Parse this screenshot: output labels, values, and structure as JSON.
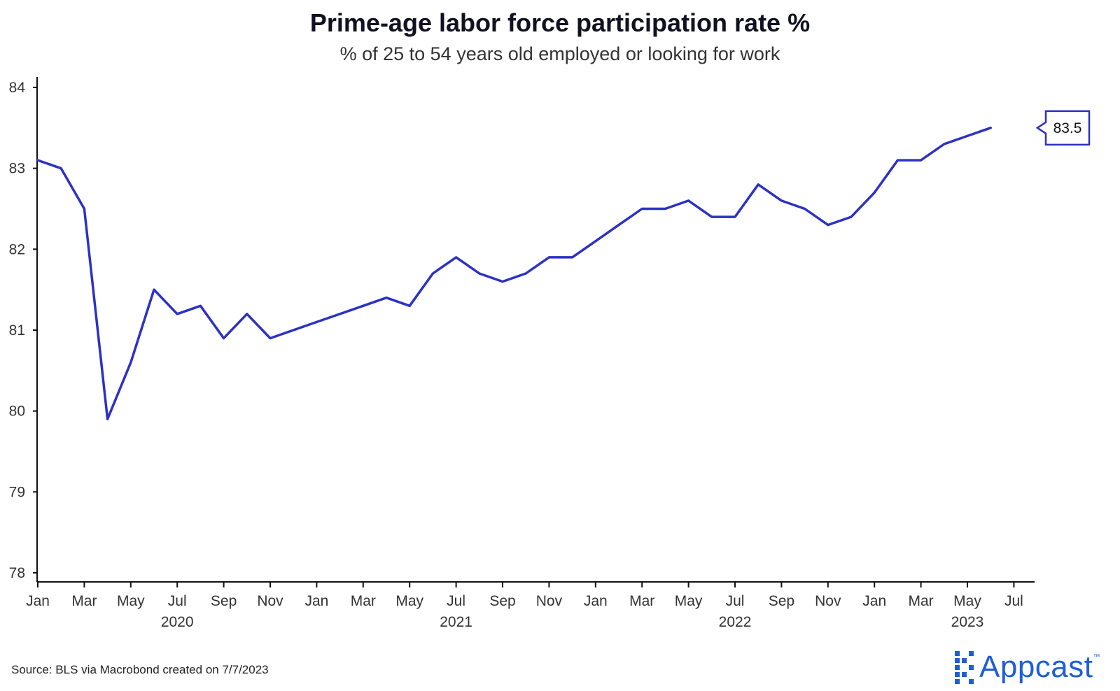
{
  "chart_data": {
    "type": "line",
    "title": "Prime-age labor force participation rate %",
    "subtitle": "% of 25 to 54 years old employed or looking for work",
    "x": [
      "2020-01",
      "2020-02",
      "2020-03",
      "2020-04",
      "2020-05",
      "2020-06",
      "2020-07",
      "2020-08",
      "2020-09",
      "2020-10",
      "2020-11",
      "2020-12",
      "2021-01",
      "2021-02",
      "2021-03",
      "2021-04",
      "2021-05",
      "2021-06",
      "2021-07",
      "2021-08",
      "2021-09",
      "2021-10",
      "2021-11",
      "2021-12",
      "2022-01",
      "2022-02",
      "2022-03",
      "2022-04",
      "2022-05",
      "2022-06",
      "2022-07",
      "2022-08",
      "2022-09",
      "2022-10",
      "2022-11",
      "2022-12",
      "2023-01",
      "2023-02",
      "2023-03",
      "2023-04",
      "2023-05",
      "2023-06"
    ],
    "series": [
      {
        "values": [
          83.1,
          83.0,
          82.5,
          79.9,
          80.6,
          81.5,
          81.2,
          81.3,
          80.9,
          81.2,
          80.9,
          81.0,
          81.1,
          81.2,
          81.3,
          81.4,
          81.3,
          81.7,
          81.9,
          81.7,
          81.6,
          81.7,
          81.9,
          81.9,
          82.1,
          82.3,
          82.5,
          82.5,
          82.6,
          82.4,
          82.4,
          82.8,
          82.6,
          82.5,
          82.3,
          82.4,
          82.7,
          83.1,
          83.1,
          83.3,
          83.4,
          83.5
        ],
        "color": "#2d31c4"
      }
    ],
    "ylim": [
      78,
      84
    ],
    "y_ticks": [
      "78",
      "79",
      "80",
      "81",
      "82",
      "83",
      "84"
    ],
    "x_tick_labels": [
      "Jan",
      "Mar",
      "May",
      "Jul",
      "Sep",
      "Nov",
      "Jan",
      "Mar",
      "May",
      "Jul",
      "Sep",
      "Nov",
      "Jan",
      "Mar",
      "May",
      "Jul",
      "Sep",
      "Nov",
      "Jan",
      "Mar",
      "May",
      "Jul"
    ],
    "year_labels": [
      "2020",
      "2021",
      "2022",
      "2023"
    ],
    "last_value_label": "83.5",
    "grid": false,
    "xlabel": "",
    "ylabel": ""
  },
  "source": "Source: BLS via Macrobond created on 7/7/2023",
  "brand": {
    "name": "Appcast",
    "tm": "™",
    "color": "#1f5ed8"
  }
}
